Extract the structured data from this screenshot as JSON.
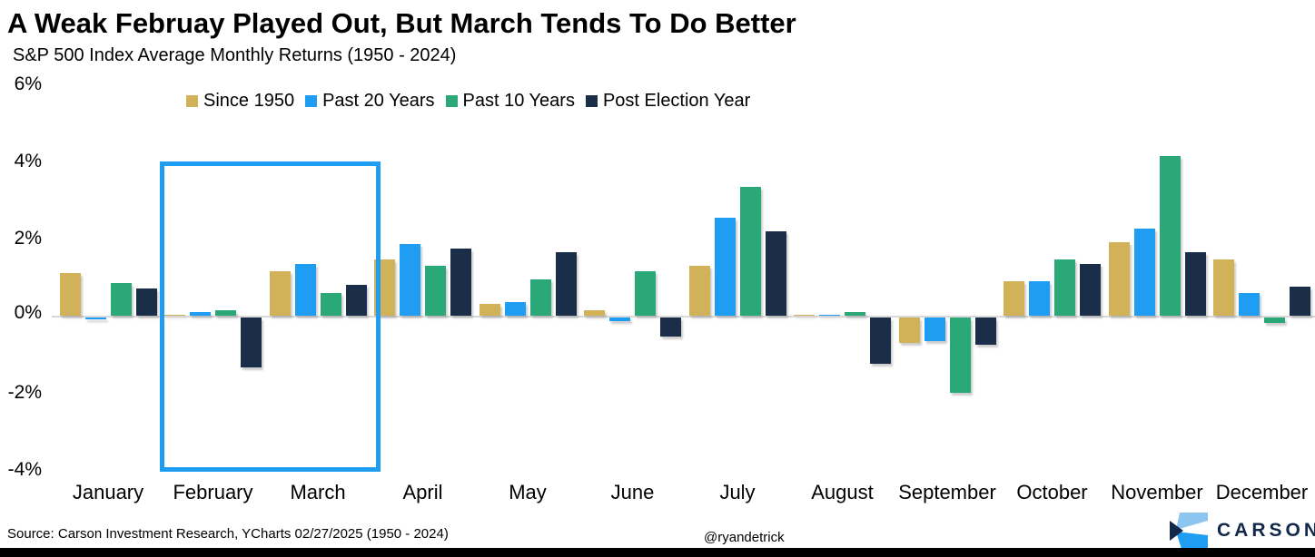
{
  "header": {
    "title": "A Weak Februay Played Out, But March Tends To Do Better",
    "subtitle": "S&P 500 Index Average Monthly Returns (1950 - 2024)"
  },
  "footer": {
    "source": "Source: Carson Investment Research, YCharts 02/27/2025 (1950 - 2024)",
    "handle": "@ryandetrick",
    "logo_text": "CARSON",
    "bar_color": "#000000"
  },
  "colors": {
    "since_1950": "#D2B258",
    "past_20": "#1E9DF2",
    "past_10": "#2BA877",
    "post_election": "#1B2E49",
    "highlight_box": "#1E9DF2",
    "zero_line": "#d9d9d9",
    "logo_light_blue": "#8CC5EF",
    "logo_bright_blue": "#1E9DF2",
    "logo_navy": "#13294B"
  },
  "chart_data": {
    "type": "bar",
    "title": "A Weak Februay Played Out, But March Tends To Do Better",
    "subtitle": "S&P 500 Index Average Monthly Returns (1950 - 2024)",
    "categories": [
      "January",
      "February",
      "March",
      "April",
      "May",
      "June",
      "July",
      "August",
      "September",
      "October",
      "November",
      "December"
    ],
    "series": [
      {
        "name": "Since 1950",
        "color": "#D2B258",
        "values": [
          1.1,
          0.0,
          1.15,
          1.45,
          0.3,
          0.15,
          1.3,
          0.0,
          -0.65,
          0.9,
          1.9,
          1.45
        ]
      },
      {
        "name": "Past 20 Years",
        "color": "#1E9DF2",
        "values": [
          -0.05,
          0.1,
          1.35,
          1.85,
          0.35,
          -0.1,
          2.55,
          0.0,
          -0.6,
          0.9,
          2.25,
          0.6
        ]
      },
      {
        "name": "Past 10 Years",
        "color": "#2BA877",
        "values": [
          0.85,
          0.15,
          0.6,
          1.3,
          0.95,
          1.15,
          3.35,
          0.1,
          -1.95,
          1.45,
          4.15,
          -0.15
        ]
      },
      {
        "name": "Post Election Year",
        "color": "#1B2E49",
        "values": [
          0.7,
          -1.3,
          0.8,
          1.75,
          1.65,
          -0.5,
          2.2,
          -1.2,
          -0.7,
          1.35,
          1.65,
          0.75
        ]
      }
    ],
    "ylabel": "",
    "xlabel": "",
    "ylim": [
      -4,
      6
    ],
    "y_ticks": [
      6,
      4,
      2,
      0,
      -2,
      -4
    ],
    "y_tick_labels": [
      "6%",
      "4%",
      "2%",
      "0%",
      "-2%",
      "-4%"
    ],
    "grid": "zero-line only",
    "legend_position": "top-center",
    "annotation": {
      "type": "highlight-rectangle",
      "months": [
        "February",
        "March"
      ],
      "y_top_pct": 4.0,
      "y_bottom_pct": -3.8
    }
  }
}
